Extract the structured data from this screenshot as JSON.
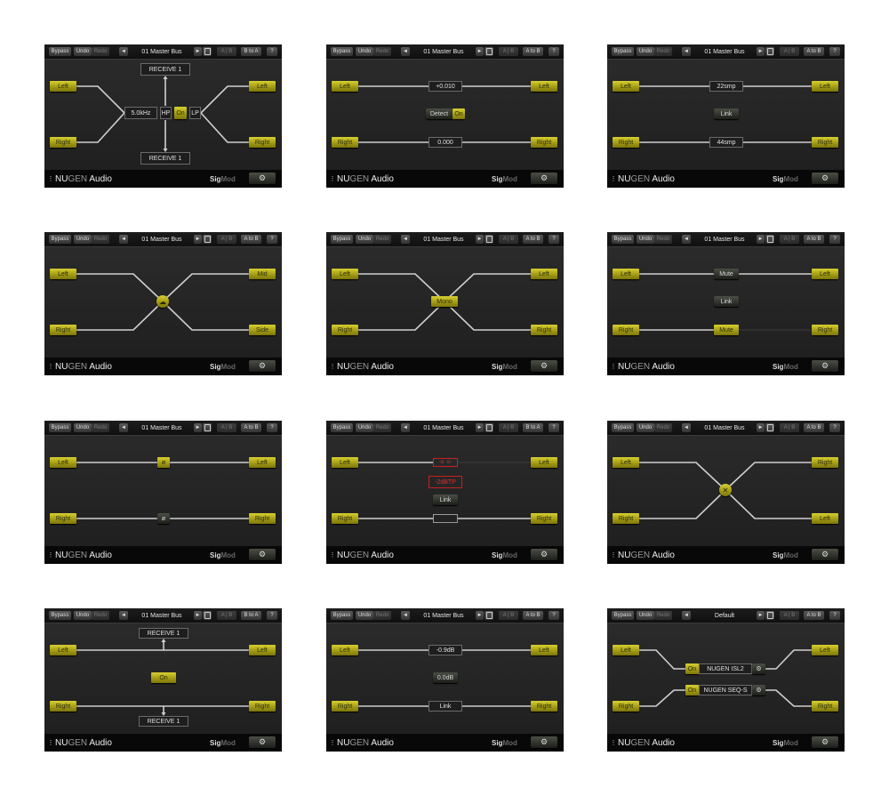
{
  "header_common": {
    "bypass": "Bypass",
    "undo": "Undo",
    "redo": "Redo",
    "prev": "◄",
    "next": "►",
    "ab": "A | B",
    "help": "?"
  },
  "footer_common": {
    "logo_nu": "NU",
    "logo_gen": "GEN",
    "logo_audio": " Audio",
    "product_sig": "Sig",
    "product_mod": "Mod"
  },
  "colors": {
    "accent": "#c8c020",
    "background": "#262626",
    "alert": "#d02020"
  },
  "panels": [
    {
      "preset": "01 Master Bus",
      "copy": "B to A",
      "labels": [
        "Left",
        "Right",
        "Left",
        "Right",
        "RECEIVE 1",
        "RECEIVE 1",
        "5.0kHz",
        "HP",
        "On",
        "LP"
      ]
    },
    {
      "preset": "01 Master Bus",
      "copy": "A to B",
      "labels": [
        "Left",
        "Right",
        "Left",
        "Right",
        "+0.010",
        "0.000",
        "Detect",
        "On"
      ]
    },
    {
      "preset": "01 Master Bus",
      "copy": "A to B",
      "labels": [
        "Left",
        "Right",
        "Left",
        "Right",
        "22smp",
        "44smp",
        "Link"
      ]
    },
    {
      "preset": "01 Master Bus",
      "copy": "A to B",
      "labels": [
        "Left",
        "Right",
        "Mid",
        "Side"
      ]
    },
    {
      "preset": "01 Master Bus",
      "copy": "A to B",
      "labels": [
        "Left",
        "Right",
        "Left",
        "Right",
        "Mono"
      ]
    },
    {
      "preset": "01 Master Bus",
      "copy": "A to B",
      "labels": [
        "Left",
        "Right",
        "Left",
        "Right",
        "Mute",
        "Link",
        "Mute"
      ]
    },
    {
      "preset": "01 Master Bus",
      "copy": "A to B",
      "labels": [
        "Left",
        "Right",
        "Left",
        "Right",
        "ø",
        "ø"
      ]
    },
    {
      "preset": "01 Master Bus",
      "copy": "B to A",
      "labels": [
        "Left",
        "Right",
        "Left",
        "Right",
        "-2dBTP",
        "Link"
      ]
    },
    {
      "preset": "01 Master Bus",
      "copy": "A to B",
      "labels": [
        "Left",
        "Right",
        "Right",
        "Left"
      ]
    },
    {
      "preset": "01 Master Bus",
      "copy": "B to A",
      "labels": [
        "Left",
        "Right",
        "Left",
        "Right",
        "RECEIVE 1",
        "On",
        "RECEIVE 1"
      ]
    },
    {
      "preset": "01 Master Bus",
      "copy": "A to B",
      "labels": [
        "Left",
        "Right",
        "Left",
        "Right",
        "-0.9dB",
        "Link",
        "0.0dB"
      ]
    },
    {
      "preset": "Default",
      "copy": "A to B",
      "labels": [
        "Left",
        "Right",
        "Left",
        "Right",
        "On",
        "NUGEN ISL2",
        "On",
        "NUGEN SEQ-S"
      ]
    }
  ]
}
